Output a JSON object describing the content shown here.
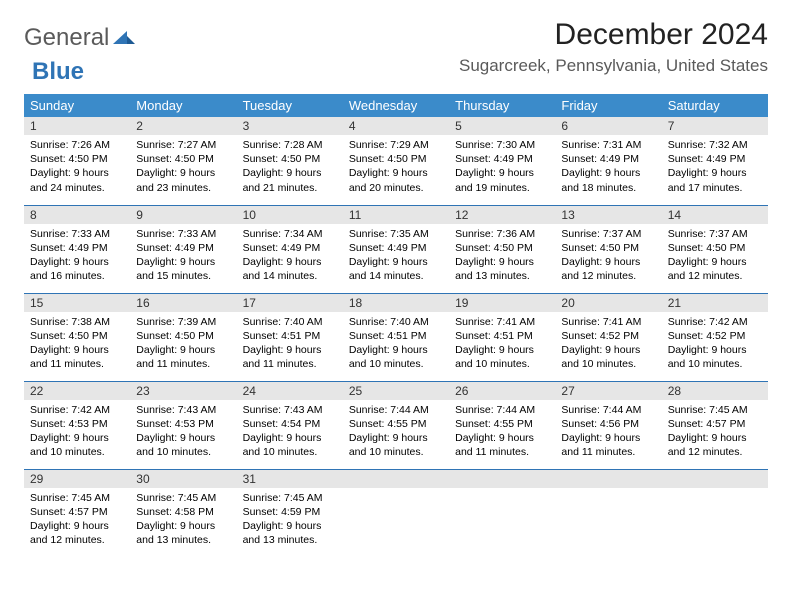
{
  "logo": {
    "text1": "General",
    "text2": "Blue"
  },
  "title": "December 2024",
  "location": "Sugarcreek, Pennsylvania, United States",
  "colors": {
    "header_bg": "#3b8bca",
    "header_text": "#ffffff",
    "daynum_bg": "#e6e6e6",
    "rule": "#2f74b5",
    "logo_blue": "#2f74b5",
    "logo_gray": "#5a5a5a"
  },
  "weekdays": [
    "Sunday",
    "Monday",
    "Tuesday",
    "Wednesday",
    "Thursday",
    "Friday",
    "Saturday"
  ],
  "weeks": [
    [
      {
        "d": "1",
        "sr": "7:26 AM",
        "ss": "4:50 PM",
        "dl": "9 hours and 24 minutes."
      },
      {
        "d": "2",
        "sr": "7:27 AM",
        "ss": "4:50 PM",
        "dl": "9 hours and 23 minutes."
      },
      {
        "d": "3",
        "sr": "7:28 AM",
        "ss": "4:50 PM",
        "dl": "9 hours and 21 minutes."
      },
      {
        "d": "4",
        "sr": "7:29 AM",
        "ss": "4:50 PM",
        "dl": "9 hours and 20 minutes."
      },
      {
        "d": "5",
        "sr": "7:30 AM",
        "ss": "4:49 PM",
        "dl": "9 hours and 19 minutes."
      },
      {
        "d": "6",
        "sr": "7:31 AM",
        "ss": "4:49 PM",
        "dl": "9 hours and 18 minutes."
      },
      {
        "d": "7",
        "sr": "7:32 AM",
        "ss": "4:49 PM",
        "dl": "9 hours and 17 minutes."
      }
    ],
    [
      {
        "d": "8",
        "sr": "7:33 AM",
        "ss": "4:49 PM",
        "dl": "9 hours and 16 minutes."
      },
      {
        "d": "9",
        "sr": "7:33 AM",
        "ss": "4:49 PM",
        "dl": "9 hours and 15 minutes."
      },
      {
        "d": "10",
        "sr": "7:34 AM",
        "ss": "4:49 PM",
        "dl": "9 hours and 14 minutes."
      },
      {
        "d": "11",
        "sr": "7:35 AM",
        "ss": "4:49 PM",
        "dl": "9 hours and 14 minutes."
      },
      {
        "d": "12",
        "sr": "7:36 AM",
        "ss": "4:50 PM",
        "dl": "9 hours and 13 minutes."
      },
      {
        "d": "13",
        "sr": "7:37 AM",
        "ss": "4:50 PM",
        "dl": "9 hours and 12 minutes."
      },
      {
        "d": "14",
        "sr": "7:37 AM",
        "ss": "4:50 PM",
        "dl": "9 hours and 12 minutes."
      }
    ],
    [
      {
        "d": "15",
        "sr": "7:38 AM",
        "ss": "4:50 PM",
        "dl": "9 hours and 11 minutes."
      },
      {
        "d": "16",
        "sr": "7:39 AM",
        "ss": "4:50 PM",
        "dl": "9 hours and 11 minutes."
      },
      {
        "d": "17",
        "sr": "7:40 AM",
        "ss": "4:51 PM",
        "dl": "9 hours and 11 minutes."
      },
      {
        "d": "18",
        "sr": "7:40 AM",
        "ss": "4:51 PM",
        "dl": "9 hours and 10 minutes."
      },
      {
        "d": "19",
        "sr": "7:41 AM",
        "ss": "4:51 PM",
        "dl": "9 hours and 10 minutes."
      },
      {
        "d": "20",
        "sr": "7:41 AM",
        "ss": "4:52 PM",
        "dl": "9 hours and 10 minutes."
      },
      {
        "d": "21",
        "sr": "7:42 AM",
        "ss": "4:52 PM",
        "dl": "9 hours and 10 minutes."
      }
    ],
    [
      {
        "d": "22",
        "sr": "7:42 AM",
        "ss": "4:53 PM",
        "dl": "9 hours and 10 minutes."
      },
      {
        "d": "23",
        "sr": "7:43 AM",
        "ss": "4:53 PM",
        "dl": "9 hours and 10 minutes."
      },
      {
        "d": "24",
        "sr": "7:43 AM",
        "ss": "4:54 PM",
        "dl": "9 hours and 10 minutes."
      },
      {
        "d": "25",
        "sr": "7:44 AM",
        "ss": "4:55 PM",
        "dl": "9 hours and 10 minutes."
      },
      {
        "d": "26",
        "sr": "7:44 AM",
        "ss": "4:55 PM",
        "dl": "9 hours and 11 minutes."
      },
      {
        "d": "27",
        "sr": "7:44 AM",
        "ss": "4:56 PM",
        "dl": "9 hours and 11 minutes."
      },
      {
        "d": "28",
        "sr": "7:45 AM",
        "ss": "4:57 PM",
        "dl": "9 hours and 12 minutes."
      }
    ],
    [
      {
        "d": "29",
        "sr": "7:45 AM",
        "ss": "4:57 PM",
        "dl": "9 hours and 12 minutes."
      },
      {
        "d": "30",
        "sr": "7:45 AM",
        "ss": "4:58 PM",
        "dl": "9 hours and 13 minutes."
      },
      {
        "d": "31",
        "sr": "7:45 AM",
        "ss": "4:59 PM",
        "dl": "9 hours and 13 minutes."
      },
      null,
      null,
      null,
      null
    ]
  ],
  "labels": {
    "sunrise": "Sunrise:",
    "sunset": "Sunset:",
    "daylight": "Daylight:"
  }
}
